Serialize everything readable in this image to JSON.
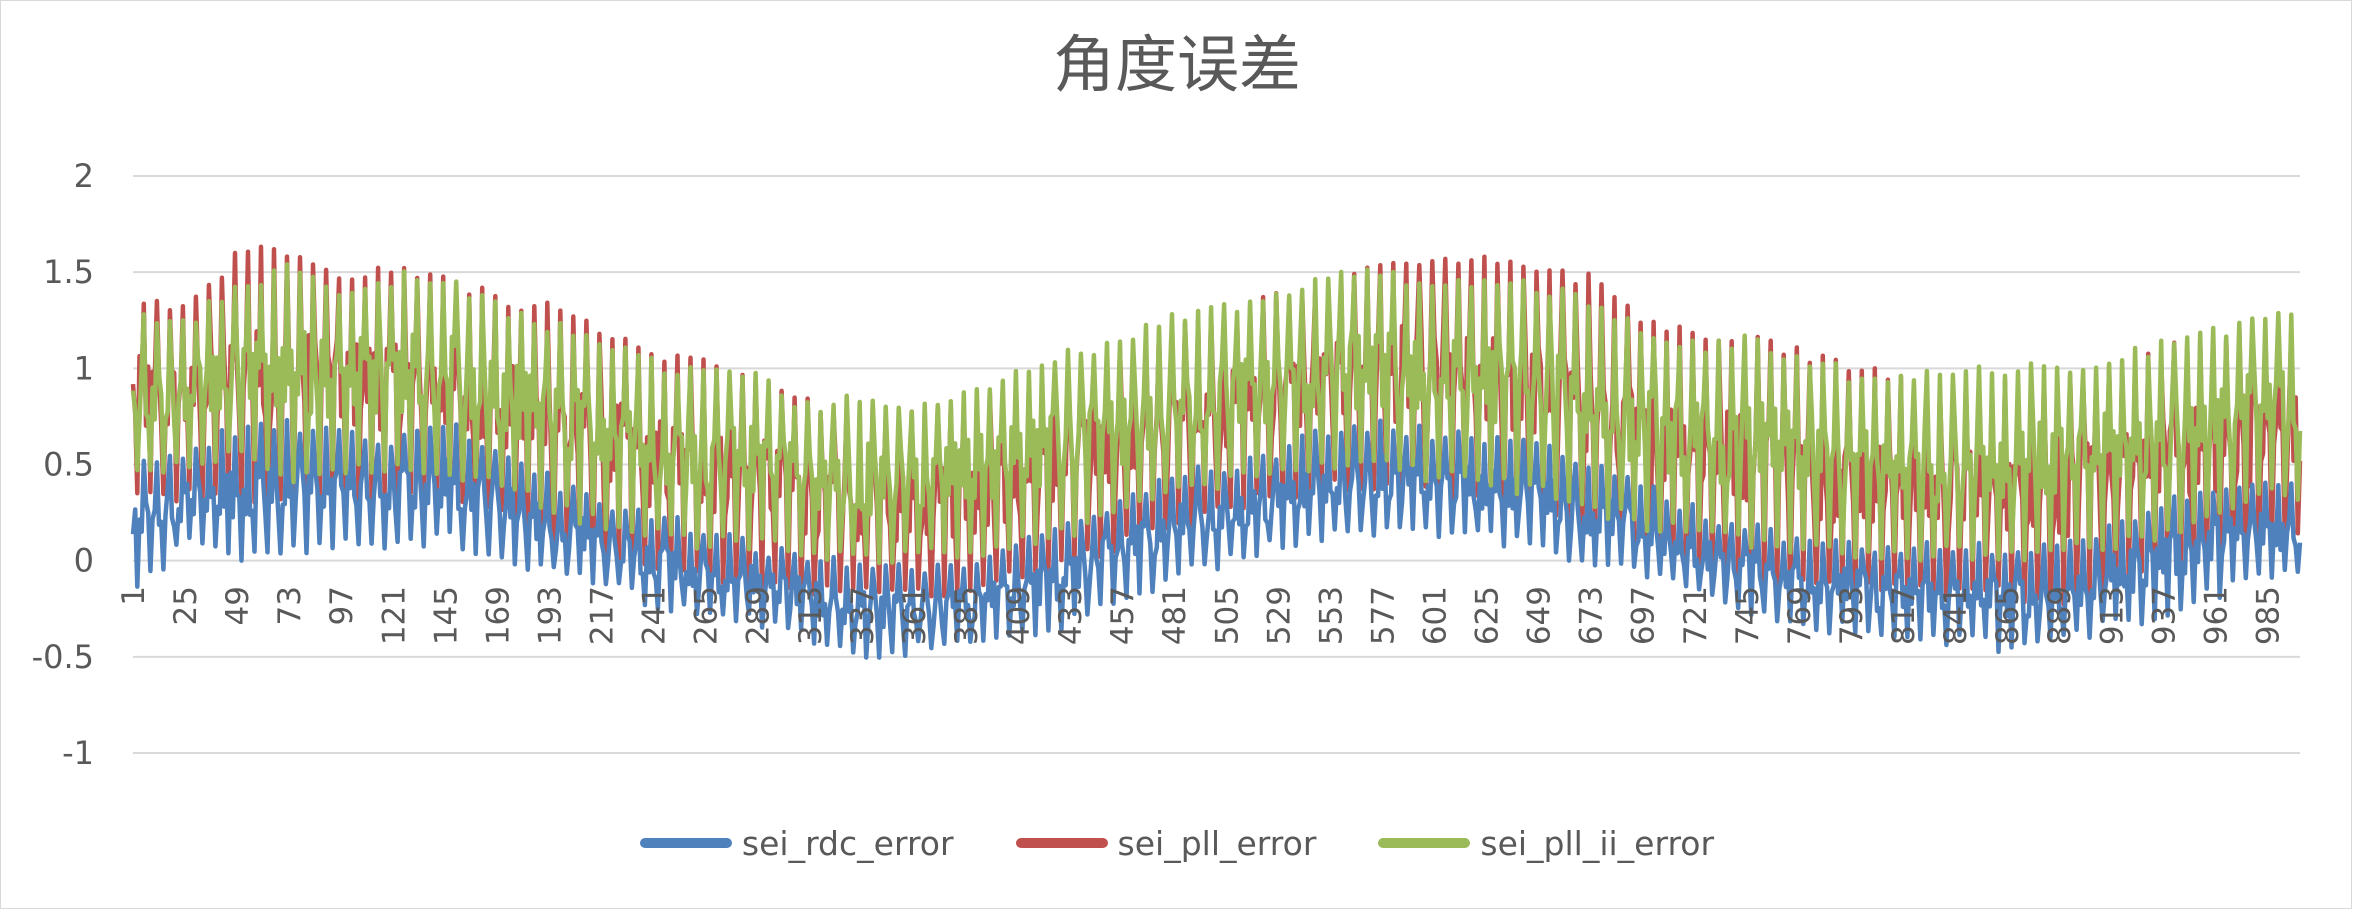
{
  "chart_data": {
    "type": "line",
    "title": "角度误差",
    "xlabel": "",
    "ylabel": "",
    "ylim": [
      -1,
      2
    ],
    "yticks": [
      "2",
      "1.5",
      "1",
      "0.5",
      "0",
      "-0.5",
      "-1"
    ],
    "xlim": [
      1,
      1000
    ],
    "xticks": [
      "1",
      "25",
      "49",
      "73",
      "97",
      "121",
      "145",
      "169",
      "193",
      "217",
      "241",
      "265",
      "289",
      "313",
      "337",
      "361",
      "385",
      "409",
      "433",
      "457",
      "481",
      "505",
      "529",
      "553",
      "577",
      "601",
      "625",
      "649",
      "673",
      "697",
      "721",
      "745",
      "769",
      "793",
      "817",
      "841",
      "865",
      "889",
      "913",
      "937",
      "961",
      "985"
    ],
    "grid": true,
    "legend_position": "bottom",
    "series": [
      {
        "name": "sei_rdc_error",
        "color": "#4f81bd",
        "x": [
          1,
          25,
          49,
          73,
          97,
          121,
          145,
          169,
          193,
          217,
          241,
          265,
          289,
          313,
          337,
          361,
          385,
          409,
          433,
          457,
          481,
          505,
          529,
          553,
          577,
          601,
          625,
          649,
          673,
          697,
          721,
          745,
          769,
          793,
          817,
          841,
          865,
          889,
          913,
          937,
          961,
          985,
          1000
        ],
        "upper": [
          0.55,
          0.6,
          0.72,
          0.75,
          0.68,
          0.66,
          0.74,
          0.62,
          0.45,
          0.35,
          0.25,
          0.2,
          0.1,
          0.05,
          0.0,
          -0.02,
          0.02,
          0.1,
          0.22,
          0.35,
          0.48,
          0.5,
          0.6,
          0.72,
          0.74,
          0.7,
          0.66,
          0.62,
          0.55,
          0.42,
          0.3,
          0.2,
          0.15,
          0.12,
          0.1,
          0.1,
          0.1,
          0.12,
          0.2,
          0.32,
          0.42,
          0.45,
          0.42
        ],
        "lower": [
          -0.2,
          0.05,
          0.0,
          0.0,
          0.05,
          0.05,
          0.08,
          0.0,
          -0.1,
          -0.15,
          -0.25,
          -0.3,
          -0.35,
          -0.45,
          -0.52,
          -0.5,
          -0.48,
          -0.45,
          -0.35,
          -0.25,
          -0.1,
          -0.05,
          0.05,
          0.1,
          0.12,
          0.1,
          0.08,
          0.05,
          -0.05,
          -0.12,
          -0.2,
          -0.28,
          -0.35,
          -0.4,
          -0.45,
          -0.45,
          -0.48,
          -0.45,
          -0.38,
          -0.3,
          -0.2,
          -0.12,
          -0.1
        ]
      },
      {
        "name": "sei_pll_error",
        "color": "#c0504d",
        "x": [
          1,
          25,
          49,
          73,
          97,
          121,
          145,
          169,
          193,
          217,
          241,
          265,
          289,
          313,
          337,
          361,
          385,
          409,
          433,
          457,
          481,
          505,
          529,
          553,
          577,
          601,
          625,
          649,
          673,
          697,
          721,
          745,
          769,
          793,
          817,
          841,
          865,
          889,
          913,
          937,
          961,
          985,
          1000
        ],
        "upper": [
          1.4,
          1.35,
          1.62,
          1.65,
          1.5,
          1.58,
          1.5,
          1.4,
          1.35,
          1.25,
          1.12,
          1.05,
          0.98,
          0.85,
          0.82,
          0.78,
          0.85,
          0.92,
          1.05,
          1.12,
          1.22,
          1.3,
          1.42,
          1.45,
          1.6,
          1.62,
          1.62,
          1.55,
          1.5,
          1.3,
          1.2,
          1.18,
          1.12,
          1.02,
          0.98,
          0.92,
          0.95,
          0.95,
          1.02,
          1.12,
          1.22,
          1.25,
          1.2
        ],
        "lower": [
          0.3,
          0.3,
          0.28,
          0.25,
          0.3,
          0.3,
          0.3,
          0.2,
          0.08,
          -0.05,
          -0.1,
          -0.12,
          -0.15,
          -0.2,
          -0.22,
          -0.2,
          -0.18,
          -0.12,
          -0.05,
          0.05,
          0.15,
          0.25,
          0.3,
          0.35,
          0.35,
          0.3,
          0.25,
          0.2,
          0.1,
          0.0,
          -0.05,
          -0.1,
          -0.15,
          -0.18,
          -0.2,
          -0.22,
          -0.2,
          -0.25,
          -0.18,
          -0.1,
          -0.05,
          0.05,
          0.1
        ]
      },
      {
        "name": "sei_pll_ii_error",
        "color": "#9bbb59",
        "x": [
          1,
          25,
          49,
          73,
          97,
          121,
          145,
          169,
          193,
          217,
          241,
          265,
          289,
          313,
          337,
          361,
          385,
          409,
          433,
          457,
          481,
          505,
          529,
          553,
          577,
          601,
          625,
          649,
          673,
          697,
          721,
          745,
          769,
          793,
          817,
          841,
          865,
          889,
          913,
          937,
          961,
          985,
          1000
        ],
        "upper": [
          1.3,
          1.25,
          1.48,
          1.55,
          1.45,
          1.5,
          1.52,
          1.35,
          1.25,
          1.2,
          1.05,
          1.0,
          0.98,
          0.82,
          0.9,
          0.85,
          0.9,
          1.0,
          1.1,
          1.18,
          1.3,
          1.35,
          1.42,
          1.55,
          1.52,
          1.48,
          1.5,
          1.45,
          1.38,
          1.25,
          1.15,
          1.18,
          1.1,
          1.0,
          1.0,
          1.0,
          1.02,
          1.05,
          1.08,
          1.15,
          1.22,
          1.32,
          1.3
        ],
        "lower": [
          0.45,
          0.45,
          0.5,
          0.4,
          0.45,
          0.42,
          0.45,
          0.35,
          0.25,
          0.15,
          0.1,
          0.05,
          0.05,
          0.0,
          -0.05,
          0.0,
          0.0,
          0.05,
          0.1,
          0.2,
          0.3,
          0.38,
          0.42,
          0.45,
          0.45,
          0.4,
          0.38,
          0.32,
          0.25,
          0.15,
          0.1,
          0.05,
          0.02,
          0.0,
          0.0,
          0.0,
          0.0,
          0.0,
          0.05,
          0.1,
          0.2,
          0.3,
          0.3
        ]
      }
    ]
  }
}
